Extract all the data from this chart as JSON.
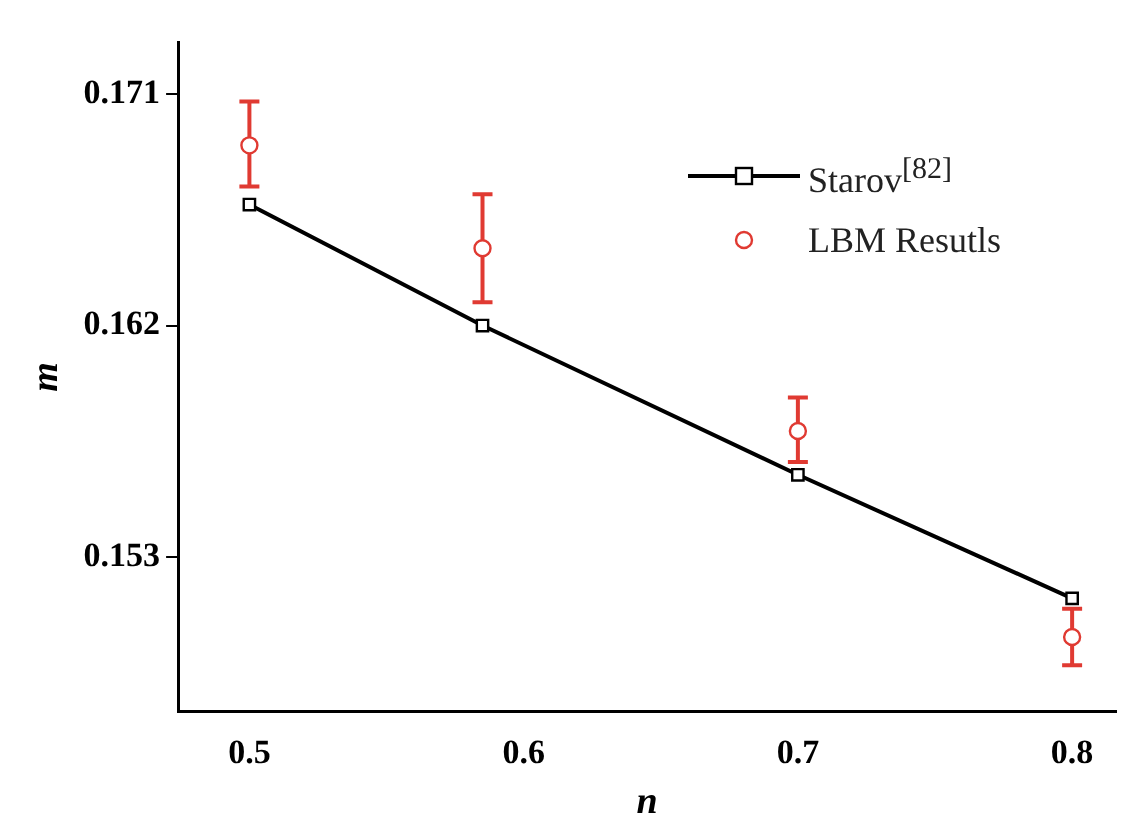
{
  "chart_data": {
    "type": "line",
    "xlabel": "n",
    "ylabel": "m",
    "xlim": [
      0.474,
      0.816
    ],
    "xticks": [
      0.5,
      0.6,
      0.7,
      0.8
    ],
    "ylim": [
      0.147,
      0.173
    ],
    "yticks": [
      0.153,
      0.162,
      0.171
    ],
    "grid": false,
    "legend": "top right",
    "series": [
      {
        "name": "Starov$^{[82]}$",
        "type": "line",
        "marker": "square",
        "line_style": "solid",
        "color": "#000000",
        "x": [
          0.5,
          0.585,
          0.7,
          0.8
        ],
        "values": [
          0.1667,
          0.162,
          0.1562,
          0.1514
        ]
      },
      {
        "name": "LBM Resutls",
        "type": "scatter",
        "marker": "circle",
        "color": "#e03a32",
        "x": [
          0.5,
          0.585,
          0.7,
          0.8
        ],
        "values": [
          0.169,
          0.165,
          0.1579,
          0.1499
        ],
        "errors": [
          [
            0.1674,
            0.1707
          ],
          [
            0.1629,
            0.1671
          ],
          [
            0.1567,
            0.1592
          ],
          [
            0.1488,
            0.151
          ]
        ]
      }
    ]
  }
}
